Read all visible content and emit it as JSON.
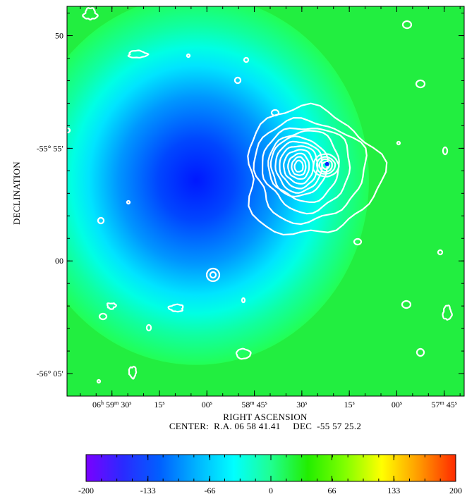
{
  "chart_data": {
    "type": "heatmap",
    "title": "",
    "xlabel": "RIGHT ASCENSION",
    "ylabel": "DECLINATION",
    "center_label": "CENTER:  R.A. 06 58 41.41     DEC  -55 57 25.2",
    "x_ticks": [
      {
        "label": "06h 59m 30s",
        "sec": 30,
        "parts": [
          [
            "06",
            "n"
          ],
          [
            "h",
            "s"
          ],
          [
            " 59",
            "n"
          ],
          [
            "m",
            "s"
          ],
          [
            " 30",
            "n"
          ],
          [
            "s",
            "s"
          ]
        ]
      },
      {
        "label": "15s",
        "sec": 15,
        "parts": [
          [
            "15",
            "n"
          ],
          [
            "s",
            "s"
          ]
        ]
      },
      {
        "label": "00s",
        "sec": 0,
        "parts": [
          [
            "00",
            "n"
          ],
          [
            "s",
            "s"
          ]
        ]
      },
      {
        "label": "58m 45s",
        "sec": -15,
        "parts": [
          [
            "58",
            "n"
          ],
          [
            "m",
            "s"
          ],
          [
            " 45",
            "n"
          ],
          [
            "s",
            "s"
          ]
        ]
      },
      {
        "label": "30s",
        "sec": -30,
        "parts": [
          [
            "30",
            "n"
          ],
          [
            "s",
            "s"
          ]
        ]
      },
      {
        "label": "15s",
        "sec": -45,
        "parts": [
          [
            "15",
            "n"
          ],
          [
            "s",
            "s"
          ]
        ]
      },
      {
        "label": "00s",
        "sec": -60,
        "parts": [
          [
            "00",
            "n"
          ],
          [
            "s",
            "s"
          ]
        ]
      },
      {
        "label": "57m 45s",
        "sec": -75,
        "parts": [
          [
            "57",
            "n"
          ],
          [
            "m",
            "s"
          ],
          [
            " 45",
            "n"
          ],
          [
            "s",
            "s"
          ]
        ]
      }
    ],
    "x_range_sec": [
      44.2,
      -81.3
    ],
    "y_ticks": [
      {
        "label": "50",
        "arcmin": -50
      },
      {
        "label": "-55° 55′",
        "arcmin": -55
      },
      {
        "label": "00",
        "arcmin": -60
      },
      {
        "label": "-56° 05′",
        "arcmin": -65
      }
    ],
    "y_range_arcmin": [
      -48.7,
      -66.0
    ],
    "colorbar": {
      "min": -200,
      "max": 200,
      "tick_labels": [
        "-200",
        "-133",
        "-66",
        "0",
        "66",
        "133",
        "200"
      ],
      "tick_values": [
        -200,
        -133,
        -66,
        0,
        66,
        133,
        200
      ],
      "colors": [
        "#7a00ff",
        "#2a2aff",
        "#0060ff",
        "#00b4ff",
        "#00ffff",
        "#20ff90",
        "#22ee00",
        "#80ff00",
        "#ffff00",
        "#ff9a00",
        "#ff2a00"
      ]
    },
    "map": {
      "background_value": 20,
      "decrement_center": {
        "ra_sec": 3.4,
        "dec_arcmin": -56.42
      },
      "decrement_peak_value": -145,
      "contour_color": "#ffffff",
      "contour_peaks": [
        {
          "ra_sec": -29.5,
          "dec_arcmin": -55.74,
          "levels": 9
        },
        {
          "ra_sec": -38.0,
          "dec_arcmin": -55.7,
          "levels": 5
        }
      ]
    },
    "grid": false,
    "legend": "none"
  }
}
